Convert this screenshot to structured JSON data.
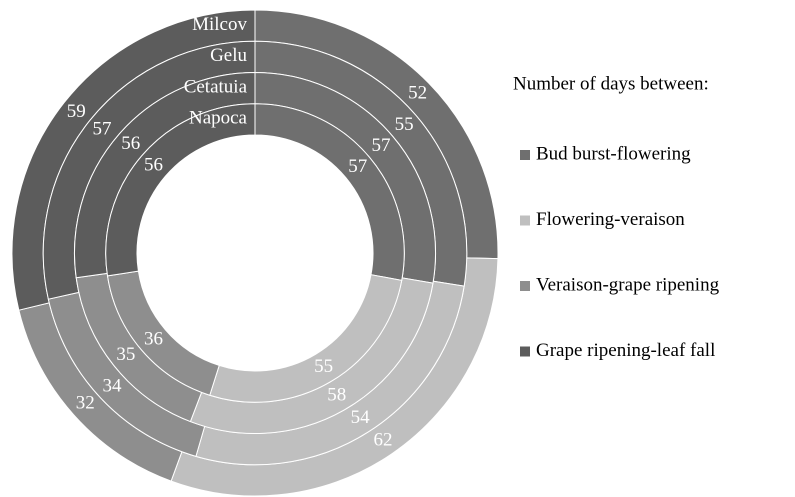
{
  "chart_data": {
    "type": "donut",
    "legend_title": "Number of days between:",
    "categories": [
      "Milcov",
      "Gelu",
      "Cetatuia",
      "Napoca"
    ],
    "series": [
      {
        "name": "Bud burst-flowering",
        "color": "#6f6f6f",
        "values": [
          52,
          55,
          57,
          57
        ]
      },
      {
        "name": "Flowering-veraison",
        "color": "#bfbfbf",
        "values": [
          62,
          54,
          58,
          55
        ]
      },
      {
        "name": "Veraison-grape ripening",
        "color": "#8e8e8e",
        "values": [
          32,
          34,
          35,
          36
        ]
      },
      {
        "name": "Grape ripening-leaf fall",
        "color": "#5c5c5c",
        "values": [
          59,
          57,
          56,
          56
        ]
      }
    ],
    "legend": "right"
  }
}
